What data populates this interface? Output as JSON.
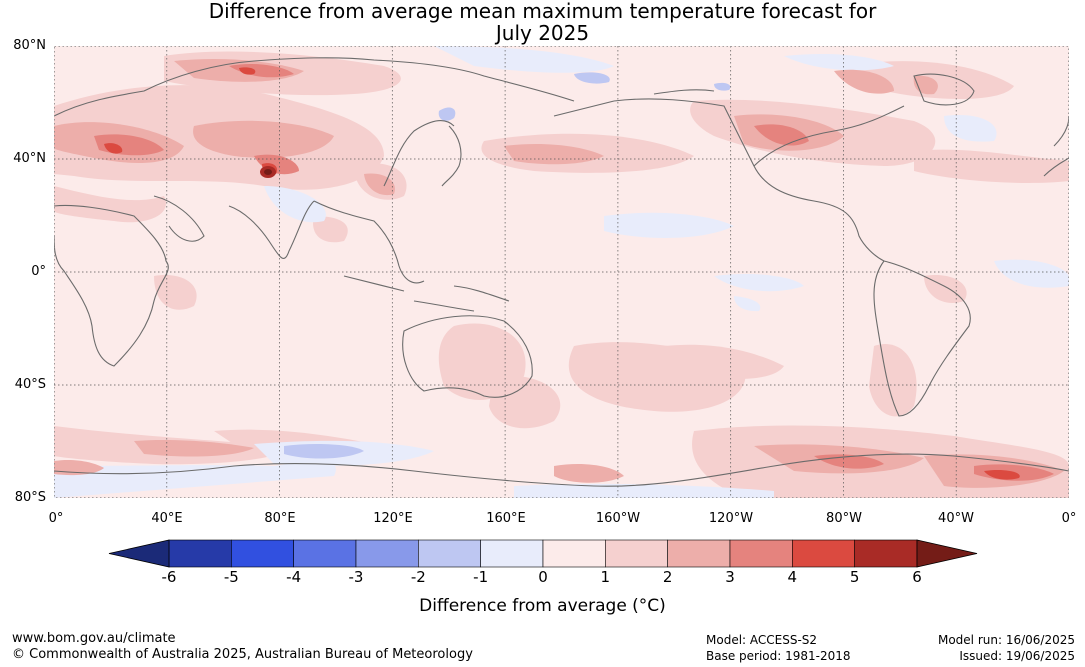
{
  "title_line1": "Difference from average mean maximum temperature forecast for",
  "title_line2": "July 2025",
  "lat_labels": [
    "80°N",
    "40°N",
    "0°",
    "40°S",
    "80°S"
  ],
  "lon_labels": [
    "0°",
    "40°E",
    "80°E",
    "120°E",
    "160°E",
    "160°W",
    "120°W",
    "80°W",
    "40°W",
    "0°"
  ],
  "colorbar": {
    "ticks": [
      "-6",
      "-5",
      "-4",
      "-3",
      "-2",
      "-1",
      "0",
      "1",
      "2",
      "3",
      "4",
      "5",
      "6"
    ],
    "colors": [
      "#263aa8",
      "#3150e0",
      "#5a72e4",
      "#8899ea",
      "#bec7f2",
      "#e8ecfb",
      "#fcebea",
      "#f5d0cf",
      "#edaeaa",
      "#e5837e",
      "#db4a40",
      "#a92b26"
    ],
    "under_color": "#1b2a78",
    "over_color": "#741c17",
    "label": "Difference from average (°C)"
  },
  "footer": {
    "website": "www.bom.gov.au/climate",
    "copyright": "© Commonwealth of Australia 2025, Australian Bureau of Meteorology",
    "model": "Model: ACCESS-S2",
    "base_period": "Base period: 1981-2018",
    "model_run": "Model run: 16/06/2025",
    "issued": "Issued: 19/06/2025"
  }
}
